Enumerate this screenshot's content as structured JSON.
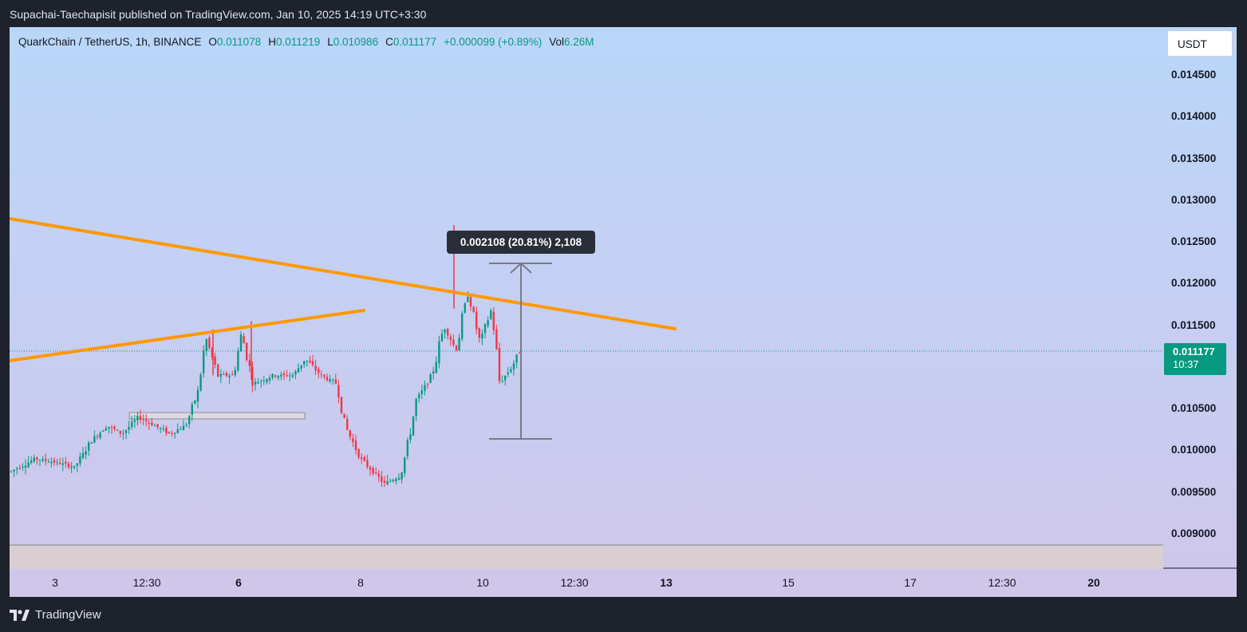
{
  "header": {
    "publisher_line": "Supachai-Taechapisit published on TradingView.com, Jan 10, 2025 14:19 UTC+3:30"
  },
  "legend": {
    "symbol": "QuarkChain / TetherUS, 1h, BINANCE",
    "o_label": "O",
    "o_value": "0.011078",
    "h_label": "H",
    "h_value": "0.011219",
    "l_label": "L",
    "l_value": "0.010986",
    "c_label": "C",
    "c_value": "0.011177",
    "change": "+0.000099 (+0.89%)",
    "vol_label": "Vol",
    "vol_value": "6.26M"
  },
  "currency": "USDT",
  "last_price": {
    "price": "0.011177",
    "countdown": "10:37",
    "color": "#089981"
  },
  "measure_label": "0.002108 (20.81%) 2,108",
  "brand": {
    "name": "TradingView"
  },
  "colors": {
    "up": "#089981",
    "down": "#f23645",
    "trendline": "#ff9800",
    "measure": "#787b86"
  },
  "chart_data": {
    "type": "candlestick",
    "symbol": "QuarkChain / TetherUS",
    "interval": "1h",
    "exchange": "BINANCE",
    "y_ticks": [
      "0.014500",
      "0.014000",
      "0.013500",
      "0.013000",
      "0.012500",
      "0.012000",
      "0.011500",
      "0.010500",
      "0.010000",
      "0.009500",
      "0.009000"
    ],
    "y_tick_values": [
      0.0145,
      0.014,
      0.0135,
      0.013,
      0.0125,
      0.012,
      0.0115,
      0.0105,
      0.01,
      0.0095,
      0.009
    ],
    "ylim": [
      0.0088,
      0.0149
    ],
    "x_ticks": [
      {
        "label": "3",
        "bold": false
      },
      {
        "label": "12:30",
        "bold": false
      },
      {
        "label": "6",
        "bold": true
      },
      {
        "label": "8",
        "bold": false
      },
      {
        "label": "10",
        "bold": false
      },
      {
        "label": "12:30",
        "bold": false
      },
      {
        "label": "13",
        "bold": true
      },
      {
        "label": "15",
        "bold": false
      },
      {
        "label": "17",
        "bold": false
      },
      {
        "label": "12:30",
        "bold": false
      },
      {
        "label": "20",
        "bold": true
      }
    ],
    "price_path": [
      [
        0,
        0.00975
      ],
      [
        0.03,
        0.0099
      ],
      [
        0.06,
        0.00985
      ],
      [
        0.08,
        0.0098
      ],
      [
        0.1,
        0.0101
      ],
      [
        0.12,
        0.0103
      ],
      [
        0.14,
        0.0102
      ],
      [
        0.16,
        0.0104
      ],
      [
        0.18,
        0.0103
      ],
      [
        0.2,
        0.0102
      ],
      [
        0.22,
        0.0103
      ],
      [
        0.235,
        0.0107
      ],
      [
        0.245,
        0.01135
      ],
      [
        0.26,
        0.0109
      ],
      [
        0.28,
        0.0109
      ],
      [
        0.29,
        0.0114
      ],
      [
        0.305,
        0.0108
      ],
      [
        0.33,
        0.0109
      ],
      [
        0.355,
        0.0109
      ],
      [
        0.37,
        0.0111
      ],
      [
        0.39,
        0.0109
      ],
      [
        0.41,
        0.0108
      ],
      [
        0.42,
        0.0103
      ],
      [
        0.44,
        0.0099
      ],
      [
        0.46,
        0.0097
      ],
      [
        0.47,
        0.0096
      ],
      [
        0.49,
        0.0097
      ],
      [
        0.5,
        0.0101
      ],
      [
        0.51,
        0.0106
      ],
      [
        0.53,
        0.0109
      ],
      [
        0.545,
        0.0115
      ],
      [
        0.56,
        0.0112
      ],
      [
        0.575,
        0.0119
      ],
      [
        0.59,
        0.0113
      ],
      [
        0.605,
        0.0117
      ],
      [
        0.615,
        0.0108
      ],
      [
        0.63,
        0.011
      ],
      [
        0.64,
        0.01118
      ]
    ],
    "trendlines": [
      {
        "name": "descending resistance",
        "from": [
          0.0,
          0.01282
        ],
        "to": [
          1.0,
          0.01145
        ]
      },
      {
        "name": "ascending support",
        "from": [
          0.0,
          0.01115
        ],
        "to": [
          1.0,
          0.0117
        ]
      }
    ],
    "support_zone": [
      0.01037,
      0.01044
    ],
    "measure": {
      "from": 0.01013,
      "to": 0.01224,
      "change": 0.002108,
      "percent": 20.81,
      "ticks": 2108
    },
    "grid": false,
    "legend_position": "top-left"
  }
}
